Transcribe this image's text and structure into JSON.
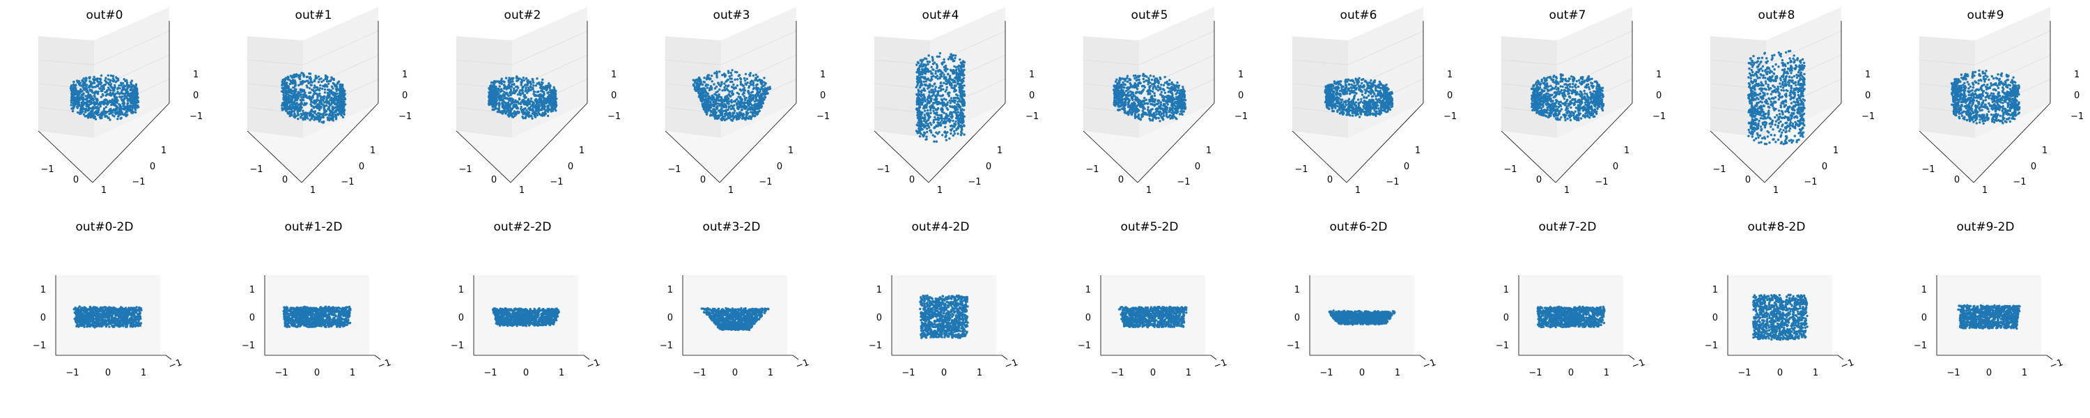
{
  "figure": {
    "point_color": "#1f77b4",
    "pane_colors": {
      "left": "#eaeaea",
      "right": "#f1f1f1",
      "floor": "#f6f6f6",
      "grid": "#d6d6d6",
      "axis": "#000000"
    }
  },
  "chart_data": [
    {
      "type": "scatter",
      "projection": "3d",
      "title": "out#0",
      "xticks": [
        "−1",
        "0",
        "1"
      ],
      "yticks": [
        "1",
        "0",
        "−1"
      ],
      "zticks": [
        "1",
        "0",
        "−1"
      ],
      "xlim": [
        -1.5,
        1.5
      ],
      "ylim": [
        -1.5,
        1.5
      ],
      "zlim": [
        -1.5,
        1.5
      ],
      "points": [
        [
          0.3,
          0.0,
          0.0
        ]
      ],
      "shape": {
        "form": "ring",
        "r": 0.85,
        "h": 0.35,
        "tilt": 0.05,
        "hole": 0.45
      }
    },
    {
      "type": "scatter",
      "projection": "3d",
      "title": "out#1",
      "xticks": [
        "−1",
        "0",
        "1"
      ],
      "yticks": [
        "1",
        "0",
        "−1"
      ],
      "zticks": [
        "1",
        "0",
        "−1"
      ],
      "xlim": [
        -1.5,
        1.5
      ],
      "ylim": [
        -1.5,
        1.5
      ],
      "zlim": [
        -1.5,
        1.5
      ],
      "points": [
        [
          0.3,
          0.0,
          0.0
        ]
      ],
      "shape": {
        "form": "ring",
        "r": 0.8,
        "h": 0.45,
        "tilt": 0.25,
        "hole": 0.55
      }
    },
    {
      "type": "scatter",
      "projection": "3d",
      "title": "out#2",
      "xticks": [
        "−1",
        "0",
        "1"
      ],
      "yticks": [
        "1",
        "0",
        "−1"
      ],
      "zticks": [
        "1",
        "0",
        "−1"
      ],
      "xlim": [
        -1.5,
        1.5
      ],
      "ylim": [
        -1.5,
        1.5
      ],
      "zlim": [
        -1.5,
        1.5
      ],
      "points": [
        [
          0.3,
          0.0,
          0.0
        ]
      ],
      "shape": {
        "form": "ring",
        "r": 0.85,
        "h": 0.3,
        "tilt": 0.15,
        "hole": 0.6
      }
    },
    {
      "type": "scatter",
      "projection": "3d",
      "title": "out#3",
      "xticks": [
        "−1",
        "0",
        "1"
      ],
      "yticks": [
        "1",
        "0",
        "−1"
      ],
      "zticks": [
        "1",
        "0",
        "−1"
      ],
      "xlim": [
        -1.5,
        1.5
      ],
      "ylim": [
        -1.5,
        1.5
      ],
      "zlim": [
        -1.5,
        1.5
      ],
      "points": [
        [
          0.3,
          0.0,
          0.0
        ]
      ],
      "shape": {
        "form": "bowl",
        "r": 0.9,
        "h": 0.45,
        "tilt": 0.1,
        "hole": 0.5
      }
    },
    {
      "type": "scatter",
      "projection": "3d",
      "title": "out#4",
      "xticks": [
        "−1",
        "0",
        "1"
      ],
      "yticks": [
        "1",
        "0",
        "−1"
      ],
      "zticks": [
        "1",
        "0",
        "−1"
      ],
      "xlim": [
        -1.5,
        1.5
      ],
      "ylim": [
        -1.5,
        1.5
      ],
      "zlim": [
        -1.5,
        1.5
      ],
      "points": [
        [
          0.3,
          0.0,
          0.0
        ]
      ],
      "shape": {
        "form": "cylinder",
        "r": 0.6,
        "h": 1.2,
        "tilt": 0.0,
        "hole": 0.2
      }
    },
    {
      "type": "scatter",
      "projection": "3d",
      "title": "out#5",
      "xticks": [
        "−1",
        "0",
        "1"
      ],
      "yticks": [
        "1",
        "0",
        "−1"
      ],
      "zticks": [
        "1",
        "0",
        "−1"
      ],
      "xlim": [
        -1.5,
        1.5
      ],
      "ylim": [
        -1.5,
        1.5
      ],
      "zlim": [
        -1.5,
        1.5
      ],
      "points": [
        [
          0.3,
          0.0,
          0.0
        ]
      ],
      "shape": {
        "form": "ring",
        "r": 0.9,
        "h": 0.35,
        "tilt": 0.25,
        "hole": 0.55
      }
    },
    {
      "type": "scatter",
      "projection": "3d",
      "title": "out#6",
      "xticks": [
        "−1",
        "0",
        "1"
      ],
      "yticks": [
        "1",
        "0",
        "−1"
      ],
      "zticks": [
        "1",
        "0",
        "−1"
      ],
      "xlim": [
        -1.5,
        1.5
      ],
      "ylim": [
        -1.5,
        1.5
      ],
      "zlim": [
        -1.5,
        1.5
      ],
      "points": [
        [
          0.3,
          0.0,
          0.0
        ]
      ],
      "shape": {
        "form": "ring",
        "r": 0.85,
        "h": 0.25,
        "tilt": 0.1,
        "hole": 0.6
      }
    },
    {
      "type": "scatter",
      "projection": "3d",
      "title": "out#7",
      "xticks": [
        "−1",
        "0",
        "1"
      ],
      "yticks": [
        "1",
        "0",
        "−1"
      ],
      "zticks": [
        "1",
        "0",
        "−1"
      ],
      "xlim": [
        -1.5,
        1.5
      ],
      "ylim": [
        -1.5,
        1.5
      ],
      "zlim": [
        -1.5,
        1.5
      ],
      "points": [
        [
          0.3,
          0.0,
          0.0
        ]
      ],
      "shape": {
        "form": "ring",
        "r": 0.9,
        "h": 0.35,
        "tilt": 0.0,
        "hole": 0.65
      }
    },
    {
      "type": "scatter",
      "projection": "3d",
      "title": "out#8",
      "xticks": [
        "−1",
        "0",
        "1"
      ],
      "yticks": [
        "1",
        "0",
        "−1"
      ],
      "zticks": [
        "1",
        "0",
        "−1"
      ],
      "xlim": [
        -1.5,
        1.5
      ],
      "ylim": [
        -1.5,
        1.5
      ],
      "zlim": [
        -1.5,
        1.5
      ],
      "points": [
        [
          0.3,
          0.0,
          0.0
        ]
      ],
      "shape": {
        "form": "cylinder",
        "r": 0.7,
        "h": 1.25,
        "tilt": 0.0,
        "hole": 0.15
      }
    },
    {
      "type": "scatter",
      "projection": "3d",
      "title": "out#9",
      "xticks": [
        "−1",
        "0",
        "1"
      ],
      "yticks": [
        "1",
        "0",
        "−1"
      ],
      "zticks": [
        "1",
        "0",
        "−1"
      ],
      "xlim": [
        -1.5,
        1.5
      ],
      "ylim": [
        -1.5,
        1.5
      ],
      "zlim": [
        -1.5,
        1.5
      ],
      "points": [
        [
          0.3,
          0.0,
          0.0
        ]
      ],
      "shape": {
        "form": "ring",
        "r": 0.85,
        "h": 0.5,
        "tilt": 0.1,
        "hole": 0.5
      }
    },
    {
      "type": "scatter",
      "projection": "2d-view",
      "title": "out#0-2D",
      "xticks": [
        "−1",
        "0",
        "1"
      ],
      "yticks": [
        "1",
        "0",
        "−1"
      ],
      "corner_tick": "−1",
      "xlim": [
        -1.6,
        1.6
      ],
      "ylim": [
        -1.6,
        1.6
      ],
      "points": [
        [
          0.3,
          0.0
        ]
      ],
      "shape": {
        "form": "rect",
        "x": [
          -0.95,
          0.95
        ],
        "y": [
          -0.35,
          0.35
        ],
        "taper": 0.05
      }
    },
    {
      "type": "scatter",
      "projection": "2d-view",
      "title": "out#1-2D",
      "xticks": [
        "−1",
        "0",
        "1"
      ],
      "yticks": [
        "1",
        "0",
        "−1"
      ],
      "corner_tick": "−1",
      "xlim": [
        -1.6,
        1.6
      ],
      "ylim": [
        -1.6,
        1.6
      ],
      "points": [
        [
          0.3,
          0.0
        ]
      ],
      "shape": {
        "form": "rect",
        "x": [
          -0.95,
          0.95
        ],
        "y": [
          -0.35,
          0.35
        ],
        "taper": 0.05
      }
    },
    {
      "type": "scatter",
      "projection": "2d-view",
      "title": "out#2-2D",
      "xticks": [
        "−1",
        "0",
        "1"
      ],
      "yticks": [
        "1",
        "0",
        "−1"
      ],
      "corner_tick": "−1",
      "xlim": [
        -1.6,
        1.6
      ],
      "ylim": [
        -1.6,
        1.6
      ],
      "points": [
        [
          0.3,
          0.0
        ]
      ],
      "shape": {
        "form": "rect",
        "x": [
          -0.95,
          0.95
        ],
        "y": [
          -0.3,
          0.3
        ],
        "taper": 0.15
      }
    },
    {
      "type": "scatter",
      "projection": "2d-view",
      "title": "out#3-2D",
      "xticks": [
        "−1",
        "0",
        "1"
      ],
      "yticks": [
        "1",
        "0",
        "−1"
      ],
      "corner_tick": "−1",
      "xlim": [
        -1.6,
        1.6
      ],
      "ylim": [
        -1.6,
        1.6
      ],
      "points": [
        [
          0.3,
          0.0
        ]
      ],
      "shape": {
        "form": "trap",
        "x": [
          -0.95,
          0.95
        ],
        "y": [
          -0.45,
          0.3
        ],
        "taper": 0.55
      }
    },
    {
      "type": "scatter",
      "projection": "2d-view",
      "title": "out#4-2D",
      "xticks": [
        "−1",
        "0",
        "1"
      ],
      "yticks": [
        "1",
        "0",
        "−1"
      ],
      "corner_tick": "−1",
      "xlim": [
        -1.6,
        1.6
      ],
      "ylim": [
        -1.6,
        1.6
      ],
      "points": [
        [
          0.3,
          0.0
        ]
      ],
      "shape": {
        "form": "rect",
        "x": [
          -0.65,
          0.65
        ],
        "y": [
          -0.75,
          0.75
        ],
        "taper": 0.0
      }
    },
    {
      "type": "scatter",
      "projection": "2d-view",
      "title": "out#5-2D",
      "xticks": [
        "−1",
        "0",
        "1"
      ],
      "yticks": [
        "1",
        "0",
        "−1"
      ],
      "corner_tick": "−1",
      "xlim": [
        -1.6,
        1.6
      ],
      "ylim": [
        -1.6,
        1.6
      ],
      "points": [
        [
          0.3,
          0.0
        ]
      ],
      "shape": {
        "form": "rect",
        "x": [
          -0.95,
          0.95
        ],
        "y": [
          -0.35,
          0.35
        ],
        "taper": 0.12
      }
    },
    {
      "type": "scatter",
      "projection": "2d-view",
      "title": "out#6-2D",
      "xticks": [
        "−1",
        "0",
        "1"
      ],
      "yticks": [
        "1",
        "0",
        "−1"
      ],
      "corner_tick": "−1",
      "xlim": [
        -1.6,
        1.6
      ],
      "ylim": [
        -1.6,
        1.6
      ],
      "points": [
        [
          0.3,
          0.0
        ]
      ],
      "shape": {
        "form": "trap",
        "x": [
          -0.95,
          0.95
        ],
        "y": [
          -0.25,
          0.2
        ],
        "taper": 0.3
      }
    },
    {
      "type": "scatter",
      "projection": "2d-view",
      "title": "out#7-2D",
      "xticks": [
        "−1",
        "0",
        "1"
      ],
      "yticks": [
        "1",
        "0",
        "−1"
      ],
      "corner_tick": "−1",
      "xlim": [
        -1.6,
        1.6
      ],
      "ylim": [
        -1.6,
        1.6
      ],
      "points": [
        [
          0.3,
          0.0
        ]
      ],
      "shape": {
        "form": "rect",
        "x": [
          -0.95,
          0.95
        ],
        "y": [
          -0.35,
          0.35
        ],
        "taper": 0.05
      }
    },
    {
      "type": "scatter",
      "projection": "2d-view",
      "title": "out#8-2D",
      "xticks": [
        "−1",
        "0",
        "1"
      ],
      "yticks": [
        "1",
        "0",
        "−1"
      ],
      "corner_tick": "−1",
      "xlim": [
        -1.6,
        1.6
      ],
      "ylim": [
        -1.6,
        1.6
      ],
      "points": [
        [
          0.3,
          0.0
        ]
      ],
      "shape": {
        "form": "rect",
        "x": [
          -0.75,
          0.75
        ],
        "y": [
          -0.8,
          0.8
        ],
        "taper": 0.0
      }
    },
    {
      "type": "scatter",
      "projection": "2d-view",
      "title": "out#9-2D",
      "xticks": [
        "−1",
        "0",
        "1"
      ],
      "yticks": [
        "1",
        "0",
        "−1"
      ],
      "corner_tick": "−1",
      "xlim": [
        -1.6,
        1.6
      ],
      "ylim": [
        -1.6,
        1.6
      ],
      "points": [
        [
          0.3,
          0.0
        ]
      ],
      "shape": {
        "form": "rect",
        "x": [
          -0.85,
          0.85
        ],
        "y": [
          -0.4,
          0.4
        ],
        "taper": 0.05
      }
    }
  ]
}
